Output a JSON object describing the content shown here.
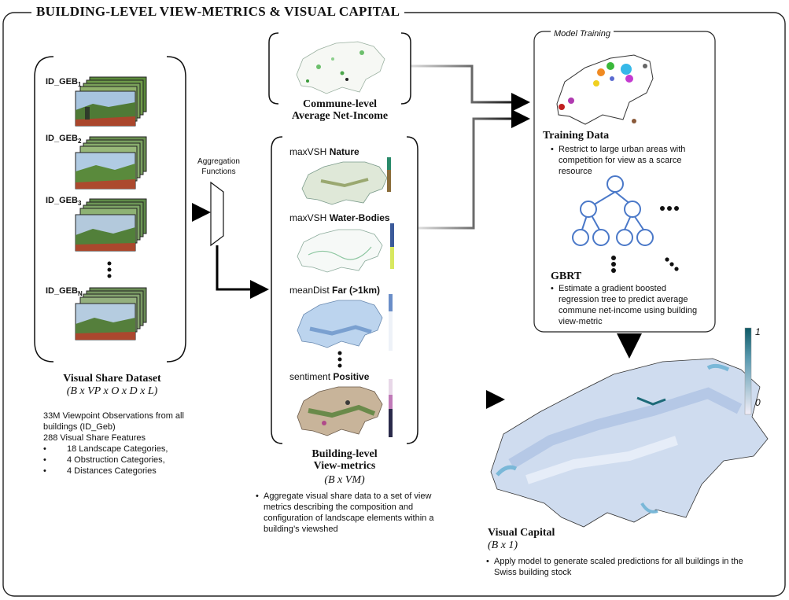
{
  "title": "BUILDING-LEVEL VIEW-METRICS & VISUAL CAPITAL",
  "dataset": {
    "ids": [
      {
        "base": "ID_GEB",
        "sub": "1"
      },
      {
        "base": "ID_GEB",
        "sub": "2"
      },
      {
        "base": "ID_GEB",
        "sub": "3"
      },
      {
        "base": "ID_GEB",
        "sub": "N"
      }
    ],
    "title": "Visual Share Dataset",
    "formula": "(B x VP x O x D x L)",
    "line1": "33M Viewpoint Observations from all",
    "line2": "buildings (ID_Geb)",
    "line3": "288 Visual Share Features",
    "categories": [
      "18 Landscape Categories,",
      "4 Obstruction Categories,",
      "4 Distances Categories"
    ]
  },
  "aggregation": {
    "line1": "Aggregation",
    "line2": "Functions"
  },
  "commune": {
    "line1": "Commune-level",
    "line2": "Average Net-Income"
  },
  "view_metrics": {
    "items": [
      {
        "prefix": "maxVSH",
        "name": "Nature"
      },
      {
        "prefix": "maxVSH",
        "name": "Water-Bodies"
      },
      {
        "prefix": "meanDist",
        "name": "Far (>1km)"
      },
      {
        "prefix": "sentiment",
        "name": "Positive"
      }
    ],
    "title_line1": "Building-level",
    "title_line2": "View-metrics",
    "formula": "(B x VM)",
    "bullet": "Aggregate visual share data to a set of view metrics describing the composition and configuration of landscape elements within a building’s viewshed"
  },
  "model": {
    "title": "Model Training",
    "training_title": "Training Data",
    "training_bullet": "Restrict to large urban areas with competition for view as a scarce resource",
    "gbrt_title": "GBRT",
    "gbrt_bullet": "Estimate a gradient boosted regression tree to predict average commune net-income using building view-metric"
  },
  "visual_capital": {
    "title": "Visual Capital",
    "formula": "(B x 1)",
    "bullet": "Apply model to generate scaled predictions for all buildings in the Swiss building stock",
    "scale_max": "1",
    "scale_min": "0"
  },
  "colors": {
    "arrow": "#000000",
    "tree_node": "#4a78c8",
    "tree_fill": "#ffffff",
    "colorbar_top": "#0e5a66",
    "colorbar_bottom": "#f2eef8"
  }
}
